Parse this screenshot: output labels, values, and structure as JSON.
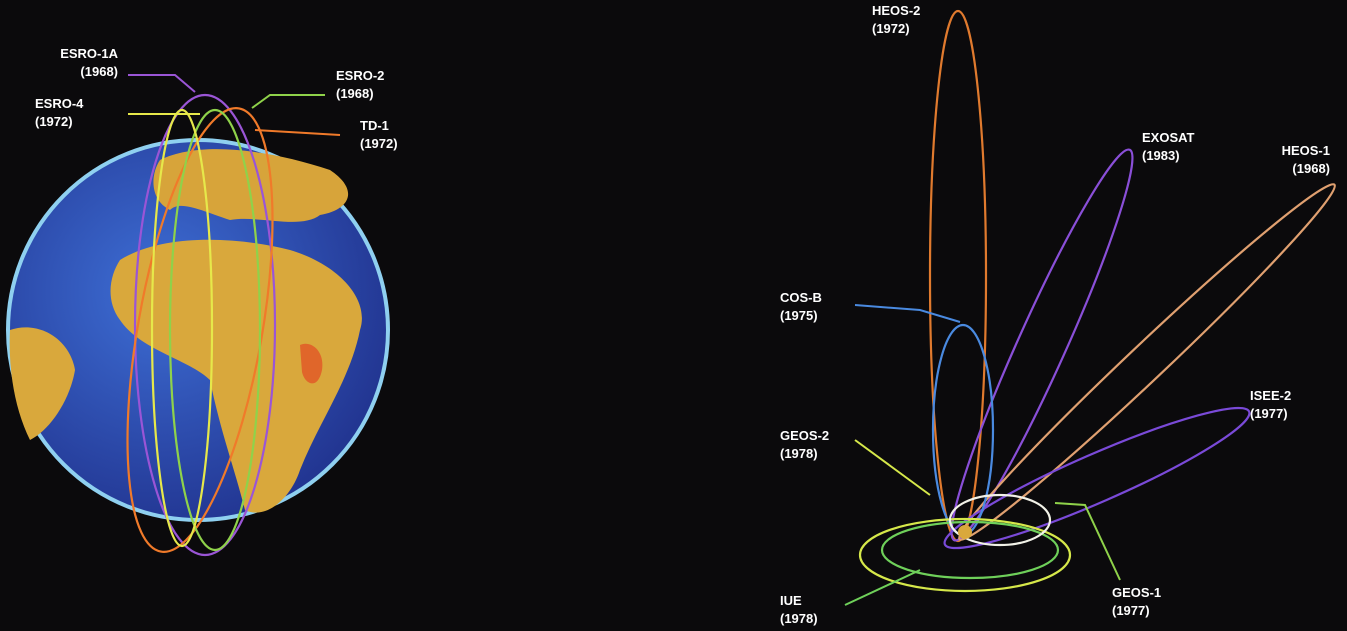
{
  "left": {
    "labels": [
      {
        "name": "ESRO-1A",
        "year": "(1968)"
      },
      {
        "name": "ESRO-2",
        "year": "(1968)"
      },
      {
        "name": "ESRO-4",
        "year": "(1972)"
      },
      {
        "name": "TD-1",
        "year": "(1972)"
      }
    ]
  },
  "right": {
    "labels": [
      {
        "name": "HEOS-2",
        "year": "(1972)"
      },
      {
        "name": "EXOSAT",
        "year": "(1983)"
      },
      {
        "name": "HEOS-1",
        "year": "(1968)"
      },
      {
        "name": "COS-B",
        "year": "(1975)"
      },
      {
        "name": "ISEE-2",
        "year": "(1977)"
      },
      {
        "name": "GEOS-2",
        "year": "(1978)"
      },
      {
        "name": "IUE",
        "year": "(1978)"
      },
      {
        "name": "GEOS-1",
        "year": "(1977)"
      }
    ]
  }
}
